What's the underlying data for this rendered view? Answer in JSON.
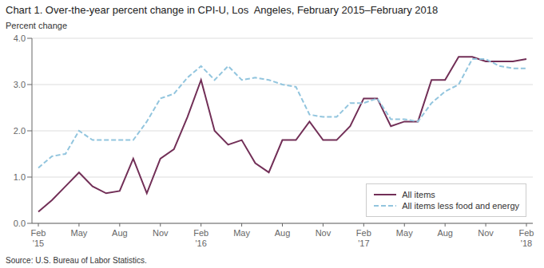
{
  "chart_data": {
    "type": "line",
    "title": "Chart 1. Over-the-year percent change in CPI-U, Los  Angeles, February 2015–February 2018",
    "y_label": "Percent change",
    "annotations": [
      "Source: U.S. Bureau of Labor Statistics."
    ],
    "categories": [
      "Feb\n'15",
      null,
      null,
      "May",
      null,
      null,
      "Aug",
      null,
      null,
      "Nov",
      null,
      null,
      "Feb\n'16",
      null,
      null,
      "May",
      null,
      null,
      "Aug",
      null,
      null,
      "Nov",
      null,
      null,
      "Feb\n'17",
      null,
      null,
      "May",
      null,
      null,
      "Aug",
      null,
      null,
      "Nov",
      null,
      null,
      "Feb\n'18"
    ],
    "series": [
      {
        "name": "All items",
        "color": "#722F57",
        "line_style": "solid",
        "values": [
          0.25,
          0.5,
          0.8,
          1.1,
          0.8,
          0.65,
          0.7,
          1.4,
          0.65,
          1.4,
          1.6,
          2.3,
          3.1,
          2.0,
          1.7,
          1.8,
          1.3,
          1.1,
          1.8,
          1.8,
          2.2,
          1.8,
          1.8,
          2.1,
          2.7,
          2.7,
          2.1,
          2.2,
          2.2,
          3.1,
          3.1,
          3.6,
          3.6,
          3.5,
          3.5,
          3.5,
          3.55
        ]
      },
      {
        "name": "All items less food and energy",
        "color": "#92c5de",
        "line_style": "dashed",
        "values": [
          1.2,
          1.45,
          1.5,
          2.0,
          1.8,
          1.8,
          1.8,
          1.8,
          2.2,
          2.7,
          2.8,
          3.15,
          3.4,
          3.1,
          3.4,
          3.1,
          3.15,
          3.1,
          3.0,
          2.95,
          2.35,
          2.3,
          2.3,
          2.6,
          2.6,
          2.7,
          2.25,
          2.25,
          2.2,
          2.6,
          2.85,
          3.0,
          3.55,
          3.55,
          3.4,
          3.35,
          3.35
        ]
      }
    ],
    "ylim": [
      0.0,
      4.0
    ],
    "yticks": [
      {
        "value": 0,
        "label": "0.0"
      },
      {
        "value": 1,
        "label": "1.0"
      },
      {
        "value": 2,
        "label": "2.0"
      },
      {
        "value": 3,
        "label": "3.0"
      },
      {
        "value": 4,
        "label": "4.0"
      }
    ],
    "grid": "y",
    "legend": "lower right"
  }
}
